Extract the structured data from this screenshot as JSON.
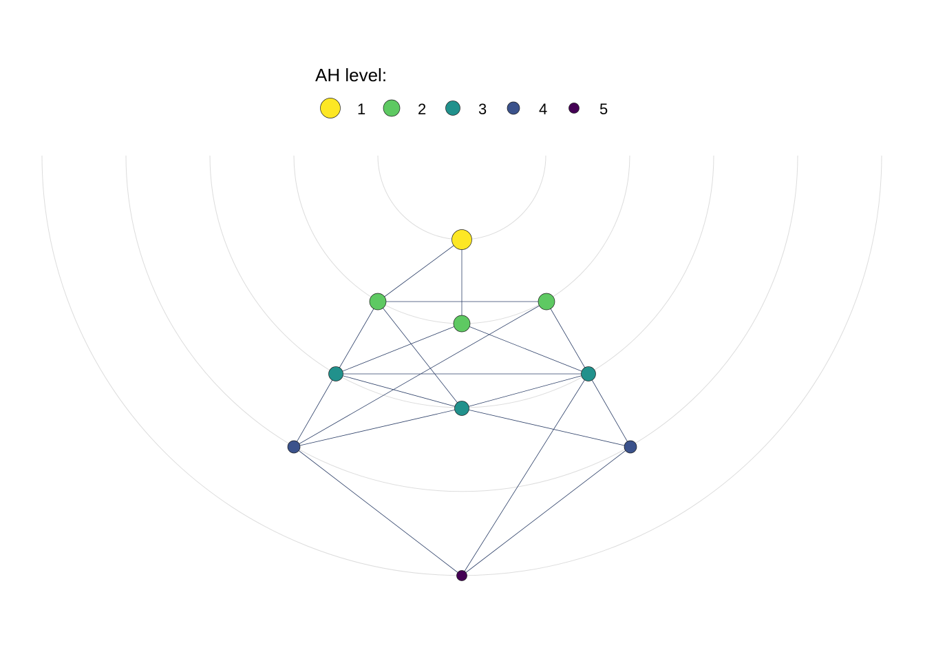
{
  "legend": {
    "title": "AH level:",
    "items": [
      {
        "label": "1",
        "level": 1,
        "color": "#fde725"
      },
      {
        "label": "2",
        "level": 2,
        "color": "#5ec962"
      },
      {
        "label": "3",
        "level": 3,
        "color": "#21918c"
      },
      {
        "label": "4",
        "level": 4,
        "color": "#3b528b"
      },
      {
        "label": "5",
        "level": 5,
        "color": "#440154"
      }
    ]
  },
  "ring_count": 5,
  "nodes": [
    {
      "id": "n1",
      "level": 1
    },
    {
      "id": "n2a",
      "level": 2
    },
    {
      "id": "n2b",
      "level": 2
    },
    {
      "id": "n2c",
      "level": 2
    },
    {
      "id": "n3a",
      "level": 3
    },
    {
      "id": "n3b",
      "level": 3
    },
    {
      "id": "n3c",
      "level": 3
    },
    {
      "id": "n4a",
      "level": 4
    },
    {
      "id": "n4b",
      "level": 4
    },
    {
      "id": "n5",
      "level": 5
    }
  ],
  "edges": [
    [
      "n1",
      "n2a"
    ],
    [
      "n1",
      "n2b"
    ],
    [
      "n2a",
      "n2c"
    ],
    [
      "n2a",
      "n3a"
    ],
    [
      "n2a",
      "n3b"
    ],
    [
      "n2b",
      "n3a"
    ],
    [
      "n2b",
      "n3c"
    ],
    [
      "n2c",
      "n3c"
    ],
    [
      "n2c",
      "n4a"
    ],
    [
      "n3a",
      "n3c"
    ],
    [
      "n3a",
      "n3b"
    ],
    [
      "n3a",
      "n4a"
    ],
    [
      "n3b",
      "n3c"
    ],
    [
      "n3b",
      "n4a"
    ],
    [
      "n3b",
      "n4b"
    ],
    [
      "n3c",
      "n4b"
    ],
    [
      "n3c",
      "n5"
    ],
    [
      "n4a",
      "n5"
    ],
    [
      "n4b",
      "n5"
    ]
  ]
}
